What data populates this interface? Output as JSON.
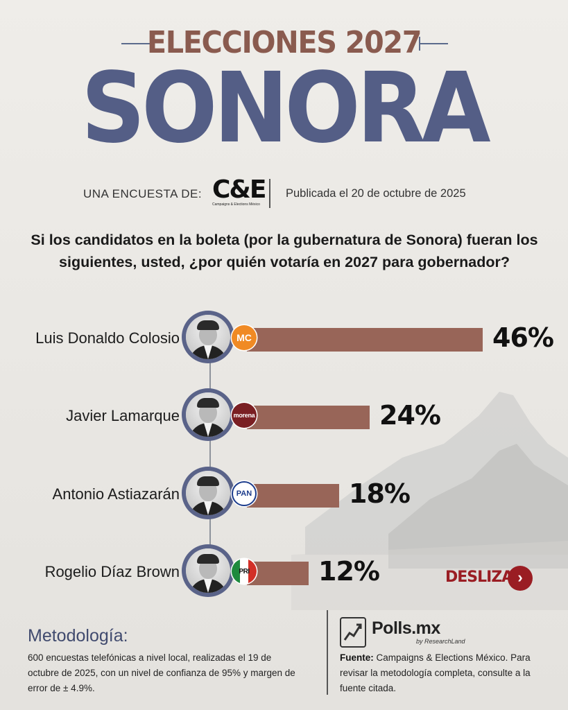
{
  "header": {
    "title_top": "ELECCIONES 2027",
    "title_main": "SONORA",
    "byline_label": "UNA ENCUESTA DE:",
    "logo_text": "C&E",
    "logo_subtext": "Campaigns & Elections México",
    "published": "Publicada el 20 de octubre de 2025"
  },
  "question": "Si los candidatos en la boleta (por la gubernatura de Sonora) fueran los siguientes, usted, ¿por quién votaría en 2027 para gobernador?",
  "chart_data": {
    "type": "bar",
    "orientation": "horizontal",
    "categories": [
      "Luis Donaldo Colosio",
      "Javier Lamarque",
      "Antonio Astiazarán",
      "Rogelio Díaz Brown"
    ],
    "values": [
      46,
      24,
      18,
      12
    ],
    "labels": [
      "46%",
      "24%",
      "18%",
      "12%"
    ],
    "unit": "%",
    "xlim": [
      0,
      46
    ],
    "bar_color": "#986558",
    "party_logos": [
      "movimiento-ciudadano-logo",
      "morena-logo",
      "pan-logo",
      "pri-logo"
    ]
  },
  "party_text": {
    "mc": "MC",
    "morena": "morena",
    "pan": "PAN",
    "pri": "PRI"
  },
  "swipe": {
    "label": "DESLIZA",
    "icon": "chevron-right-icon"
  },
  "methodology": {
    "title": "Metodología:",
    "text": "600 encuestas telefónicas a nivel local, realizadas el 19 de octubre de 2025, con un nivel de confianza de 95% y margen de error de ± 4.9%."
  },
  "footer": {
    "brand": "Polls.mx",
    "brand_sub": "by ResearchLand",
    "source_label": "Fuente:",
    "source_text": " Campaigns & Elections México. Para revisar la metodología completa, consulte a la fuente citada."
  },
  "colors": {
    "title_top": "#8a5b4f",
    "title_main": "#545e86",
    "bar": "#986558",
    "accent_red": "#9a1d23",
    "avatar_ring": "#5a6389"
  }
}
